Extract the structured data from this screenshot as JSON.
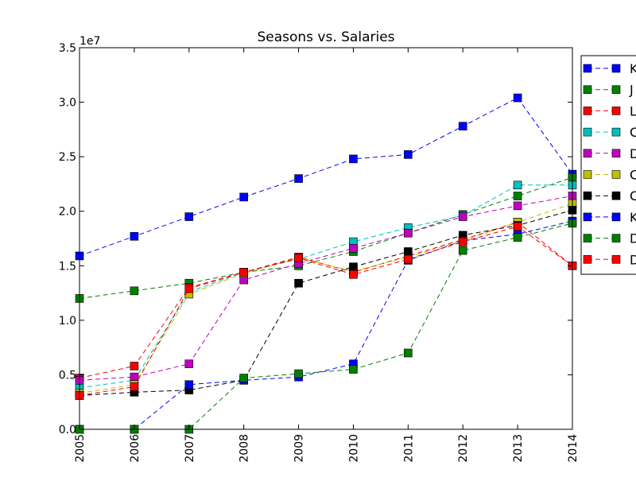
{
  "chart_data": {
    "type": "line",
    "title": "Seasons vs. Salaries",
    "xlabel": "",
    "ylabel": "",
    "y_multiplier_label": "1e7",
    "x": [
      "2005",
      "2006",
      "2007",
      "2008",
      "2009",
      "2010",
      "2011",
      "2012",
      "2013",
      "2014"
    ],
    "xlim": [
      2005,
      2014
    ],
    "ylim": [
      0,
      35000000
    ],
    "y_ticks": [
      0,
      5000000,
      10000000,
      15000000,
      20000000,
      25000000,
      30000000,
      35000000
    ],
    "y_tick_labels": [
      "0.0",
      "0.5",
      "1.0",
      "1.5",
      "2.0",
      "2.5",
      "3.0",
      "3.5"
    ],
    "grid": false,
    "legend_position": "right, outside plot (clipped)",
    "series": [
      {
        "name": "K",
        "color": "#0000ff",
        "values": [
          15900000,
          17700000,
          19500000,
          21300000,
          23000000,
          24800000,
          25200000,
          27800000,
          30400000,
          23400000
        ]
      },
      {
        "name": "J",
        "color": "#008000",
        "values": [
          12000000,
          12700000,
          13400000,
          14400000,
          15000000,
          16300000,
          18000000,
          19700000,
          21400000,
          23100000
        ]
      },
      {
        "name": "L",
        "color": "#ff0000",
        "values": [
          4700000,
          5800000,
          13000000,
          14400000,
          15800000,
          14400000,
          15900000,
          17400000,
          19000000,
          15000000
        ]
      },
      {
        "name": "C",
        "color": "#00bfbf",
        "values": [
          3800000,
          4500000,
          12600000,
          14400000,
          15600000,
          17200000,
          18500000,
          19600000,
          22400000,
          22400000
        ]
      },
      {
        "name": "D",
        "color": "#bf00bf",
        "values": [
          4500000,
          4800000,
          6000000,
          13700000,
          15200000,
          16600000,
          18000000,
          19500000,
          20500000,
          21400000
        ]
      },
      {
        "name": "C",
        "color": "#bfbf00",
        "values": [
          3300000,
          4100000,
          12400000,
          14300000,
          15700000,
          14500000,
          15800000,
          17300000,
          19000000,
          20700000
        ]
      },
      {
        "name": "C",
        "color": "#000000",
        "values": [
          3100000,
          3400000,
          3600000,
          4500000,
          13400000,
          14900000,
          16300000,
          17800000,
          18700000,
          20100000
        ]
      },
      {
        "name": "K",
        "color": "#0000ff",
        "values": [
          0,
          0,
          4100000,
          4500000,
          4800000,
          6000000,
          15500000,
          17300000,
          17900000,
          19100000
        ]
      },
      {
        "name": "D",
        "color": "#008000",
        "values": [
          0,
          0,
          0,
          4700000,
          5100000,
          5500000,
          7000000,
          16400000,
          17600000,
          18900000
        ]
      },
      {
        "name": "D",
        "color": "#ff0000",
        "values": [
          3100000,
          3900000,
          12900000,
          14400000,
          15700000,
          14200000,
          15600000,
          17200000,
          18600000,
          15000000
        ]
      }
    ]
  }
}
